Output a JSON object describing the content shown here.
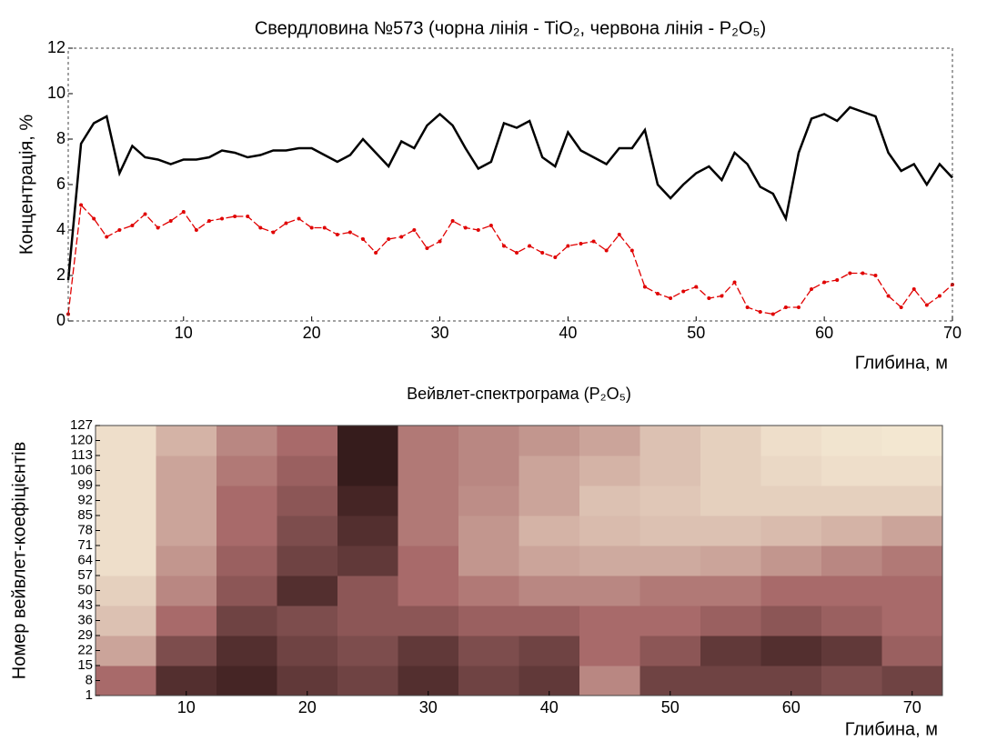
{
  "chart_data": [
    {
      "type": "line",
      "title": "Свердловина №573 (чорна лінія - TiO₂, червона лінія - P₂O₅)",
      "xlabel": "Глибина, м",
      "ylabel": "Концентрація, %",
      "x": [
        1,
        2,
        3,
        4,
        5,
        6,
        7,
        8,
        9,
        10,
        11,
        12,
        13,
        14,
        15,
        16,
        17,
        18,
        19,
        20,
        21,
        22,
        23,
        24,
        25,
        26,
        27,
        28,
        29,
        30,
        31,
        32,
        33,
        34,
        35,
        36,
        37,
        38,
        39,
        40,
        41,
        42,
        43,
        44,
        45,
        46,
        47,
        48,
        49,
        50,
        51,
        52,
        53,
        54,
        55,
        56,
        57,
        58,
        59,
        60,
        61,
        62,
        63,
        64,
        65,
        66,
        67,
        68,
        69,
        70
      ],
      "series": [
        {
          "color": "#000000",
          "dash": false,
          "markers": false,
          "values": [
            1.8,
            7.8,
            8.7,
            9.0,
            6.5,
            7.7,
            7.2,
            7.1,
            6.9,
            7.1,
            7.1,
            7.2,
            7.5,
            7.4,
            7.2,
            7.3,
            7.5,
            7.5,
            7.6,
            7.6,
            7.3,
            7.0,
            7.3,
            8.0,
            7.4,
            6.8,
            7.9,
            7.6,
            8.6,
            9.1,
            8.6,
            7.6,
            6.7,
            7.0,
            8.7,
            8.5,
            8.8,
            7.2,
            6.8,
            8.3,
            7.5,
            7.2,
            6.9,
            7.6,
            7.6,
            8.4,
            6.0,
            5.4,
            6.0,
            6.5,
            6.8,
            6.2,
            7.4,
            6.9,
            5.9,
            5.6,
            4.5,
            7.4,
            8.9,
            9.1,
            8.8,
            9.4,
            9.2,
            9.0,
            7.4,
            6.6,
            6.9,
            6.0,
            6.9,
            6.3
          ]
        },
        {
          "color": "#e00000",
          "dash": true,
          "markers": true,
          "values": [
            0.3,
            5.1,
            4.5,
            3.7,
            4.0,
            4.2,
            4.7,
            4.1,
            4.4,
            4.8,
            4.0,
            4.4,
            4.5,
            4.6,
            4.6,
            4.1,
            3.9,
            4.3,
            4.5,
            4.1,
            4.1,
            3.8,
            3.9,
            3.6,
            3.0,
            3.6,
            3.7,
            4.0,
            3.2,
            3.5,
            4.4,
            4.1,
            4.0,
            4.2,
            3.3,
            3.0,
            3.3,
            3.0,
            2.8,
            3.3,
            3.4,
            3.5,
            3.1,
            3.8,
            3.1,
            1.5,
            1.2,
            1.0,
            1.3,
            1.5,
            1.0,
            1.1,
            1.7,
            0.6,
            0.4,
            0.3,
            0.6,
            0.6,
            1.4,
            1.7,
            1.8,
            2.1,
            2.1,
            2.0,
            1.1,
            0.6,
            1.4,
            0.7,
            1.1,
            1.6
          ]
        }
      ],
      "xlim": [
        1,
        70
      ],
      "xticks": [
        10,
        20,
        30,
        40,
        50,
        60,
        70
      ],
      "ylim": [
        0,
        12
      ],
      "yticks": [
        0,
        2,
        4,
        6,
        8,
        10,
        12
      ]
    },
    {
      "type": "heatmap",
      "title": "Вейвлет-спектрограма (P₂O₅)",
      "xlabel": "Глибина, м",
      "ylabel": "Номер вейвлет-коефіцієнтів",
      "x": [
        5,
        10,
        15,
        20,
        25,
        30,
        35,
        40,
        45,
        50,
        55,
        60,
        65,
        70
      ],
      "y": [
        8,
        22,
        36,
        50,
        64,
        78,
        92,
        106,
        120
      ],
      "colormap": [
        "#1a0808",
        "#a86a6a",
        "#fffbe2"
      ],
      "values": [
        [
          0.5,
          0.2,
          0.15,
          0.25,
          0.3,
          0.2,
          0.3,
          0.25,
          0.6,
          0.3,
          0.3,
          0.3,
          0.35,
          0.3
        ],
        [
          0.7,
          0.35,
          0.2,
          0.3,
          0.35,
          0.25,
          0.35,
          0.3,
          0.5,
          0.4,
          0.25,
          0.2,
          0.25,
          0.45
        ],
        [
          0.8,
          0.5,
          0.3,
          0.35,
          0.4,
          0.4,
          0.45,
          0.45,
          0.5,
          0.5,
          0.45,
          0.4,
          0.45,
          0.5
        ],
        [
          0.85,
          0.6,
          0.4,
          0.2,
          0.4,
          0.5,
          0.55,
          0.6,
          0.6,
          0.55,
          0.55,
          0.5,
          0.5,
          0.5
        ],
        [
          0.9,
          0.65,
          0.45,
          0.3,
          0.25,
          0.5,
          0.65,
          0.7,
          0.72,
          0.72,
          0.7,
          0.65,
          0.6,
          0.55
        ],
        [
          0.9,
          0.7,
          0.5,
          0.35,
          0.2,
          0.55,
          0.65,
          0.75,
          0.78,
          0.8,
          0.8,
          0.78,
          0.75,
          0.7
        ],
        [
          0.9,
          0.7,
          0.5,
          0.4,
          0.15,
          0.55,
          0.62,
          0.7,
          0.8,
          0.82,
          0.85,
          0.85,
          0.85,
          0.85
        ],
        [
          0.9,
          0.7,
          0.55,
          0.45,
          0.1,
          0.55,
          0.6,
          0.7,
          0.75,
          0.8,
          0.85,
          0.88,
          0.9,
          0.9
        ],
        [
          0.9,
          0.75,
          0.6,
          0.5,
          0.1,
          0.55,
          0.6,
          0.65,
          0.7,
          0.8,
          0.85,
          0.9,
          0.92,
          0.93
        ]
      ],
      "xlim": [
        2.5,
        72.5
      ],
      "xticks": [
        10,
        20,
        30,
        40,
        50,
        60,
        70
      ],
      "ylim": [
        1,
        127
      ],
      "yticks": [
        1,
        8,
        15,
        22,
        29,
        36,
        43,
        50,
        57,
        64,
        71,
        78,
        85,
        92,
        99,
        106,
        113,
        120,
        127
      ]
    }
  ]
}
